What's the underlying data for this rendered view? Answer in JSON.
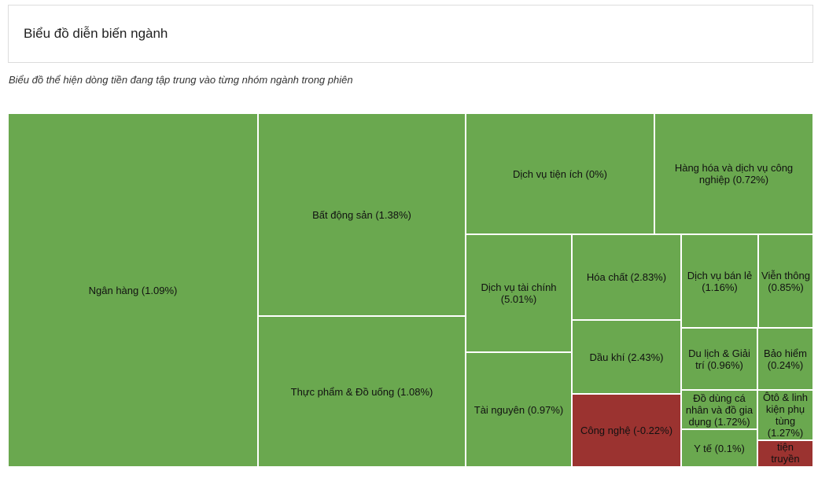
{
  "header": {
    "title": "Biểu đồ diễn biến ngành"
  },
  "subtitle": "Biểu đồ thể hiện dòng tiền đang tập trung vào từng nhóm ngành trong phiên",
  "colors": {
    "positive": "#6aa84f",
    "negative": "#9b3330"
  },
  "chart_data": {
    "type": "treemap",
    "title": "",
    "items": [
      {
        "name": "Ngân hàng",
        "change": 1.09,
        "label": "Ngân hàng (1.09%)"
      },
      {
        "name": "Bất động sản",
        "change": 1.38,
        "label": "Bất động sản (1.38%)"
      },
      {
        "name": "Thực phẩm & Đồ uống",
        "change": 1.08,
        "label": "Thực phẩm & Đồ uống (1.08%)"
      },
      {
        "name": "Dịch vụ tiện ích",
        "change": 0,
        "label": "Dịch vụ tiện ích (0%)"
      },
      {
        "name": "Hàng hóa và dịch vụ công nghiệp",
        "change": 0.72,
        "label": "Hàng hóa và dịch vụ công nghiệp (0.72%)"
      },
      {
        "name": "Dịch vụ tài chính",
        "change": 5.01,
        "label": "Dịch vụ tài chính (5.01%)"
      },
      {
        "name": "Tài nguyên",
        "change": 0.97,
        "label": "Tài nguyên (0.97%)"
      },
      {
        "name": "Hóa chất",
        "change": 2.83,
        "label": "Hóa chất (2.83%)"
      },
      {
        "name": "Dầu khí",
        "change": 2.43,
        "label": "Dầu khí (2.43%)"
      },
      {
        "name": "Công nghệ",
        "change": -0.22,
        "label": "Công nghệ (-0.22%)"
      },
      {
        "name": "Dịch vụ bán lẻ",
        "change": 1.16,
        "label": "Dịch vụ bán lẻ (1.16%)"
      },
      {
        "name": "Viễn thông",
        "change": 0.85,
        "label": "Viễn thông (0.85%)"
      },
      {
        "name": "Du lịch & Giải trí",
        "change": 0.96,
        "label": "Du lịch & Giải trí (0.96%)"
      },
      {
        "name": "Bảo hiểm",
        "change": 0.24,
        "label": "Bảo hiểm (0.24%)"
      },
      {
        "name": "Đồ dùng cá nhân và đồ gia dụng",
        "change": 1.72,
        "label": "Đồ dùng cá nhân và đồ gia dụng (1.72%)"
      },
      {
        "name": "Ôtô & linh kiện phụ tùng",
        "change": 1.27,
        "label": "Ôtô & linh kiện phụ tùng (1.27%)"
      },
      {
        "name": "Y tế",
        "change": 0.1,
        "label": "Y tế (0.1%)"
      },
      {
        "name": "Phương tiện truyền thông",
        "change": null,
        "label": "tiện truyền thông"
      }
    ]
  }
}
